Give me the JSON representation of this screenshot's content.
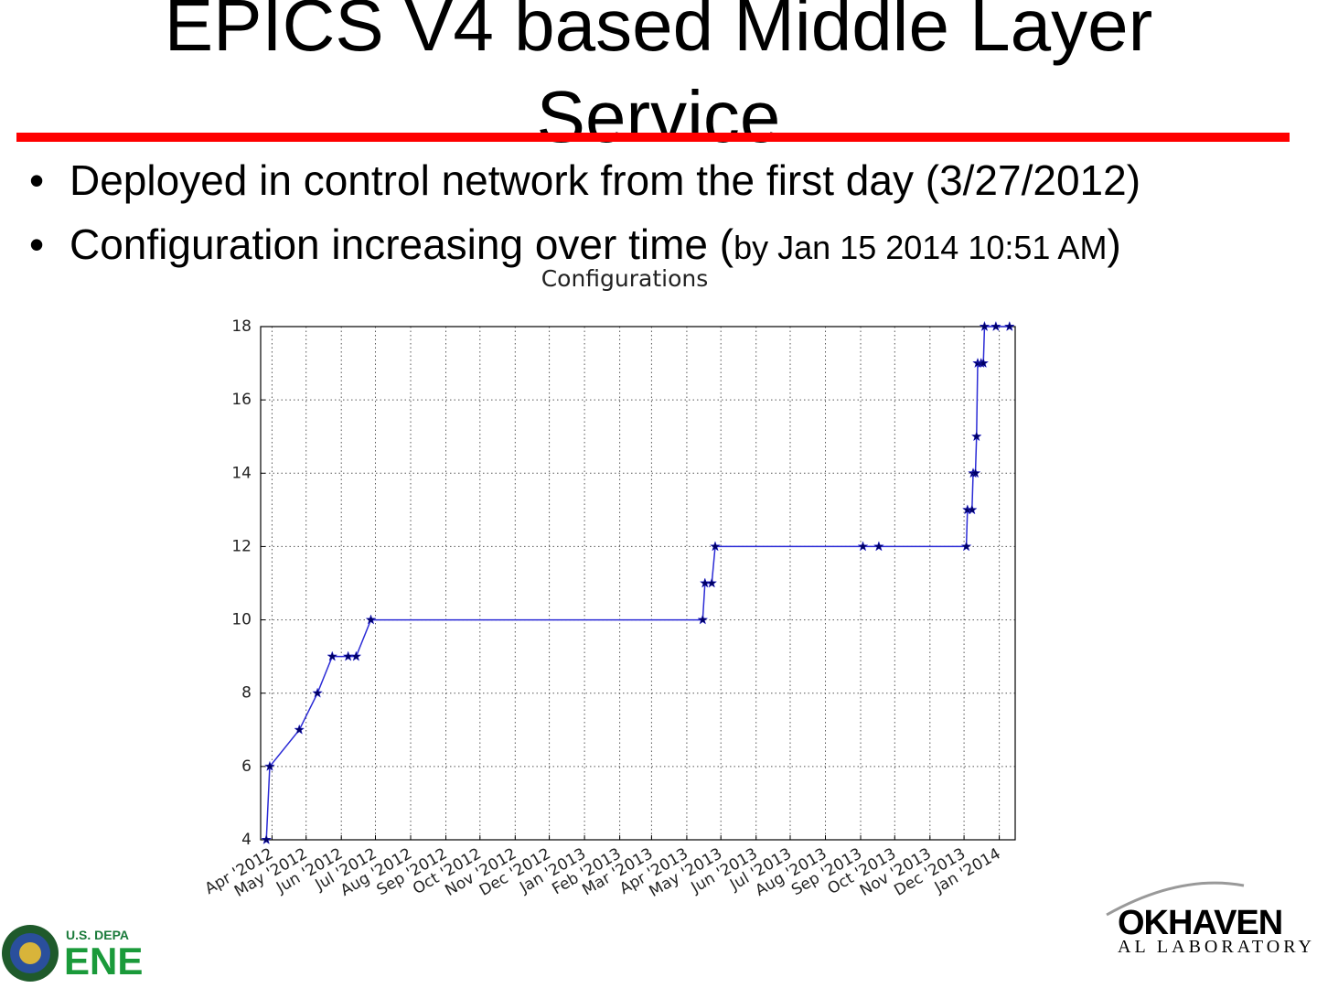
{
  "title": "EPICS V4 based Middle Layer Service",
  "bullets": [
    {
      "text": "Deployed in control network from the first day (3/27/2012)"
    },
    {
      "text": "Configuration increasing over time (",
      "small": "by Jan 15 2014 10:51 AM",
      "end": ")"
    }
  ],
  "logo_left": {
    "line1": "U.S. DEPA",
    "line2": "ENE"
  },
  "logo_right": {
    "line1": "OKHAVEN",
    "line2": "AL LABORATORY"
  },
  "chart_data": {
    "type": "line",
    "title": "Configurations",
    "x": [
      "2012-03-27",
      "2012-03-30",
      "2012-04-25",
      "2012-05-11",
      "2012-05-24",
      "2012-06-07",
      "2012-06-14",
      "2012-06-27",
      "2013-04-15",
      "2013-04-17",
      "2013-04-23",
      "2013-04-26",
      "2013-09-03",
      "2013-09-17",
      "2013-12-03",
      "2013-12-04",
      "2013-12-08",
      "2013-12-09",
      "2013-12-11",
      "2013-12-12",
      "2013-12-13",
      "2013-12-16",
      "2013-12-18",
      "2013-12-19",
      "2013-12-29",
      "2014-01-10"
    ],
    "series": [
      {
        "name": "Configurations",
        "color": "#2b2bd6",
        "marker_color": "#000066",
        "values": [
          4,
          6,
          7,
          8,
          9,
          9,
          9,
          10,
          10,
          11,
          11,
          12,
          12,
          12,
          12,
          13,
          13,
          14,
          14,
          15,
          17,
          17,
          17,
          18,
          18,
          18
        ]
      }
    ],
    "xlim": [
      "2012-03-22",
      "2014-01-15"
    ],
    "xticks": [
      {
        "value": "2012-04-01",
        "label": "Apr '2012"
      },
      {
        "value": "2012-05-01",
        "label": "May '2012"
      },
      {
        "value": "2012-06-01",
        "label": "Jun '2012"
      },
      {
        "value": "2012-07-01",
        "label": "Jul '2012"
      },
      {
        "value": "2012-08-01",
        "label": "Aug '2012"
      },
      {
        "value": "2012-09-01",
        "label": "Sep '2012"
      },
      {
        "value": "2012-10-01",
        "label": "Oct '2012"
      },
      {
        "value": "2012-11-01",
        "label": "Nov '2012"
      },
      {
        "value": "2012-12-01",
        "label": "Dec '2012"
      },
      {
        "value": "2013-01-01",
        "label": "Jan '2013"
      },
      {
        "value": "2013-02-01",
        "label": "Feb '2013"
      },
      {
        "value": "2013-03-01",
        "label": "Mar '2013"
      },
      {
        "value": "2013-04-01",
        "label": "Apr '2013"
      },
      {
        "value": "2013-05-01",
        "label": "May '2013"
      },
      {
        "value": "2013-06-01",
        "label": "Jun '2013"
      },
      {
        "value": "2013-07-01",
        "label": "Jul '2013"
      },
      {
        "value": "2013-08-01",
        "label": "Aug '2013"
      },
      {
        "value": "2013-09-01",
        "label": "Sep '2013"
      },
      {
        "value": "2013-10-01",
        "label": "Oct '2013"
      },
      {
        "value": "2013-11-01",
        "label": "Nov '2013"
      },
      {
        "value": "2013-12-01",
        "label": "Dec '2013"
      },
      {
        "value": "2014-01-01",
        "label": "Jan '2014"
      }
    ],
    "ylim": [
      4,
      18
    ],
    "yticks": [
      4,
      6,
      8,
      10,
      12,
      14,
      16,
      18
    ],
    "grid": true
  }
}
